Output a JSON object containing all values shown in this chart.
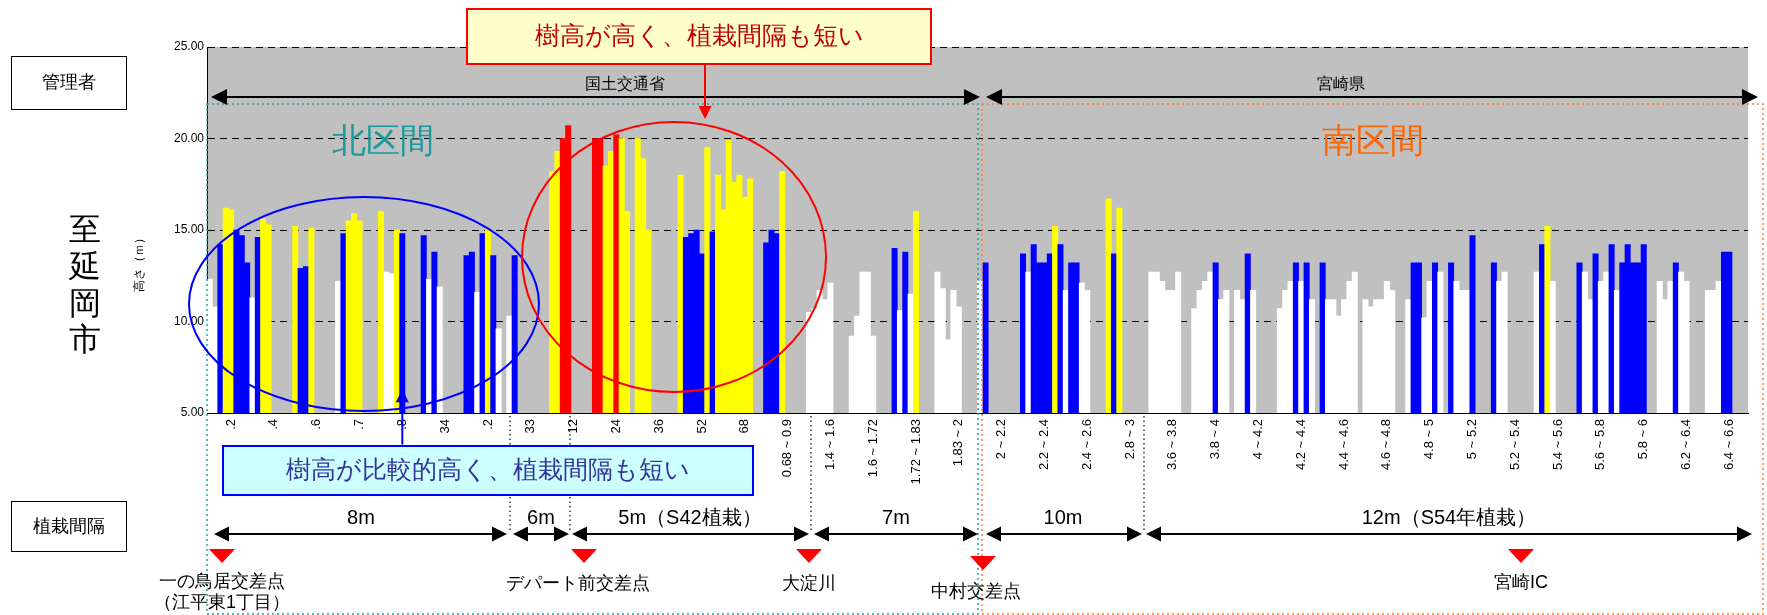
{
  "chart_data": {
    "type": "bar",
    "ylabel": "高さ（ｍ）",
    "categories": [
      null,
      null,
      null,
      null,
      ".2",
      null,
      null,
      null,
      null,
      null,
      null,
      null,
      ".4",
      null,
      null,
      null,
      null,
      null,
      null,
      null,
      ".6",
      null,
      null,
      null,
      null,
      null,
      null,
      null,
      ".7",
      null,
      null,
      null,
      null,
      null,
      null,
      null,
      ".8",
      null,
      null,
      null,
      null,
      null,
      null,
      null,
      "34",
      null,
      null,
      null,
      null,
      null,
      null,
      null,
      ".2",
      null,
      null,
      null,
      null,
      null,
      null,
      null,
      "33",
      null,
      null,
      null,
      null,
      null,
      null,
      null,
      "12",
      null,
      null,
      null,
      null,
      null,
      null,
      null,
      "24",
      null,
      null,
      null,
      null,
      null,
      null,
      null,
      "36",
      null,
      null,
      null,
      null,
      null,
      null,
      null,
      "52",
      null,
      null,
      null,
      null,
      null,
      null,
      null,
      "68",
      null,
      null,
      null,
      null,
      null,
      null,
      null,
      "0.68 ~ 0.9",
      null,
      null,
      null,
      null,
      null,
      null,
      null,
      "1.4 ~ 1.6",
      null,
      null,
      null,
      null,
      null,
      null,
      null,
      "1.6 ~ 1.72",
      null,
      null,
      null,
      null,
      null,
      null,
      null,
      "1.72 ~ 1.83",
      null,
      null,
      null,
      null,
      null,
      null,
      null,
      "1.83 ~ 2",
      null,
      null,
      null,
      null,
      null,
      null,
      null,
      "2 ~ 2.2",
      null,
      null,
      null,
      null,
      null,
      null,
      null,
      "2.2 ~ 2.4",
      null,
      null,
      null,
      null,
      null,
      null,
      null,
      "2.4 ~ 2.6",
      null,
      null,
      null,
      null,
      null,
      null,
      null,
      "2.8 ~ 3",
      null,
      null,
      null,
      null,
      null,
      null,
      null,
      "3.6 ~ 3.8",
      null,
      null,
      null,
      null,
      null,
      null,
      null,
      "3.8 ~ 4",
      null,
      null,
      null,
      null,
      null,
      null,
      null,
      "4 ~ 4.2",
      null,
      null,
      null,
      null,
      null,
      null,
      null,
      "4.2 ~ 4.4",
      null,
      null,
      null,
      null,
      null,
      null,
      null,
      "4.4 ~ 4.6",
      null,
      null,
      null,
      null,
      null,
      null,
      null,
      "4.6 ~ 4.8",
      null,
      null,
      null,
      null,
      null,
      null,
      null,
      "4.8 ~ 5",
      null,
      null,
      null,
      null,
      null,
      null,
      null,
      "5 ~ 5.2",
      null,
      null,
      null,
      null,
      null,
      null,
      null,
      "5.2 ~ 5.4",
      null,
      null,
      null,
      null,
      null,
      null,
      null,
      "5.4 ~ 5.6",
      null,
      null,
      null,
      null,
      null,
      null,
      null,
      "5.6 ~ 5.8",
      null,
      null,
      null,
      null,
      null,
      null,
      null,
      "5.8 ~ 6",
      null,
      null,
      null,
      null,
      null,
      null,
      null,
      "6.2 ~ 6.4",
      null,
      null,
      null,
      null,
      null,
      null,
      null,
      "6.4 ~ 6.6",
      null,
      null,
      null
    ],
    "values": [
      12.3,
      10.8,
      14.2,
      16.2,
      16.1,
      15.0,
      14.7,
      13.2,
      11.3,
      14.6,
      15.6,
      15.3,
      null,
      null,
      null,
      null,
      15.2,
      12.9,
      13.0,
      15.1,
      null,
      null,
      null,
      null,
      12.2,
      14.8,
      15.5,
      15.9,
      15.5,
      null,
      null,
      null,
      16.0,
      12.7,
      12.6,
      15.0,
      14.8,
      null,
      null,
      null,
      14.7,
      12.3,
      13.8,
      11.9,
      null,
      null,
      null,
      null,
      13.6,
      13.8,
      11.6,
      14.8,
      15.0,
      13.6,
      9.6,
      null,
      10.3,
      13.6,
      null,
      null,
      null,
      null,
      null,
      null,
      18.2,
      19.3,
      20.0,
      20.7,
      null,
      null,
      null,
      null,
      20.0,
      20.0,
      18.5,
      19.3,
      20.2,
      20.0,
      16.0,
      null,
      20.0,
      18.9,
      15.0,
      null,
      null,
      null,
      null,
      null,
      18.0,
      14.6,
      14.8,
      15.0,
      13.7,
      19.5,
      14.9,
      18.0,
      16.1,
      19.9,
      17.6,
      18.0,
      16.8,
      17.8,
      null,
      null,
      14.3,
      15.0,
      14.8,
      18.2,
      null,
      null,
      null,
      null,
      10.5,
      10.7,
      11.7,
      11.2,
      12.1,
      null,
      null,
      null,
      9.2,
      10.3,
      12.7,
      12.7,
      9.2,
      null,
      null,
      null,
      14.0,
      10.6,
      13.8,
      11.5,
      16.0,
      null,
      null,
      null,
      12.7,
      11.8,
      9.0,
      11.7,
      10.8,
      null,
      null,
      null,
      12.2,
      13.2,
      null,
      null,
      null,
      null,
      null,
      null,
      13.7,
      12.7,
      14.2,
      13.2,
      13.2,
      13.7,
      15.2,
      14.2,
      11.7,
      13.2,
      13.2,
      12.1,
      11.7,
      null,
      null,
      null,
      16.7,
      13.7,
      16.2,
      null,
      null,
      null,
      null,
      null,
      12.7,
      12.7,
      12.2,
      11.7,
      11.7,
      12.7,
      null,
      null,
      10.7,
      11.7,
      12.2,
      12.7,
      13.2,
      11.2,
      11.7,
      null,
      11.7,
      11.2,
      13.7,
      11.7,
      null,
      null,
      null,
      null,
      10.7,
      11.7,
      12.2,
      13.2,
      12.2,
      13.2,
      11.2,
      null,
      13.2,
      11.2,
      11.2,
      10.3,
      11.2,
      12.2,
      12.7,
      null,
      11.2,
      10.8,
      11.2,
      11.2,
      12.2,
      11.7,
      null,
      null,
      11.2,
      13.2,
      13.2,
      10.2,
      12.2,
      13.2,
      12.7,
      null,
      13.2,
      12.2,
      11.7,
      11.7,
      14.7,
      null,
      null,
      null,
      13.2,
      12.2,
      12.7,
      null,
      null,
      null,
      null,
      null,
      12.7,
      14.2,
      15.2,
      12.2,
      null,
      null,
      null,
      null,
      13.2,
      12.7,
      11.2,
      13.7,
      12.2,
      12.7,
      14.2,
      11.7,
      13.2,
      14.2,
      13.2,
      13.2,
      14.2,
      null,
      null,
      12.2,
      11.2,
      12.2,
      13.2,
      12.7,
      12.2,
      null,
      null,
      null,
      11.7,
      11.7,
      12.2,
      13.8,
      13.8,
      null,
      null,
      null
    ],
    "colors": [
      "#ffffff",
      "#ffffff",
      "#0000ff",
      "#ffff00",
      "#ffff00",
      "#0000ff",
      "#0000ff",
      "#0000ff",
      "#ffffff",
      "#0000ff",
      "#ffff00",
      "#ffff00",
      null,
      null,
      null,
      null,
      "#ffff00",
      "#0000ff",
      "#0000ff",
      "#ffff00",
      null,
      null,
      null,
      null,
      "#ffffff",
      "#0000ff",
      "#ffff00",
      "#ffff00",
      "#ffff00",
      null,
      null,
      null,
      "#ffff00",
      "#ffffff",
      "#ffffff",
      "#ffff00",
      "#0000ff",
      null,
      null,
      null,
      "#0000ff",
      "#ffffff",
      "#0000ff",
      "#ffffff",
      null,
      null,
      null,
      null,
      "#0000ff",
      "#0000ff",
      "#ffffff",
      "#0000ff",
      "#ffff00",
      "#0000ff",
      "#ffffff",
      null,
      "#ffffff",
      "#0000ff",
      null,
      null,
      null,
      null,
      null,
      null,
      "#ffff00",
      "#ffff00",
      "#ff0000",
      "#ff0000",
      null,
      null,
      null,
      null,
      "#ff0000",
      "#ff0000",
      "#ffff00",
      "#ffff00",
      "#ff0000",
      "#ffff00",
      "#ffff00",
      null,
      "#ffff00",
      "#ffff00",
      "#ffff00",
      null,
      null,
      null,
      null,
      null,
      "#ffff00",
      "#0000ff",
      "#0000ff",
      "#0000ff",
      "#0000ff",
      "#ffff00",
      "#0000ff",
      "#ffff00",
      "#ffff00",
      "#ffff00",
      "#ffff00",
      "#ffff00",
      "#ffff00",
      "#ffff00",
      null,
      null,
      "#0000ff",
      "#0000ff",
      "#0000ff",
      "#ffff00",
      null,
      null,
      null,
      null,
      "#ffffff",
      "#ffffff",
      "#ffffff",
      "#ffffff",
      "#ffffff",
      null,
      null,
      null,
      "#ffffff",
      "#ffffff",
      "#ffffff",
      "#ffffff",
      "#ffffff",
      null,
      null,
      null,
      "#0000ff",
      "#ffffff",
      "#0000ff",
      "#ffffff",
      "#ffff00",
      null,
      null,
      null,
      "#ffffff",
      "#ffffff",
      "#ffffff",
      "#ffffff",
      "#ffffff",
      null,
      null,
      null,
      "#ffffff",
      "#0000ff",
      null,
      null,
      null,
      null,
      null,
      null,
      "#0000ff",
      "#ffffff",
      "#0000ff",
      "#0000ff",
      "#0000ff",
      "#0000ff",
      "#ffff00",
      "#0000ff",
      "#ffffff",
      "#0000ff",
      "#0000ff",
      "#ffffff",
      "#ffffff",
      null,
      null,
      null,
      "#ffff00",
      "#0000ff",
      "#ffff00",
      null,
      null,
      null,
      null,
      null,
      "#ffffff",
      "#ffffff",
      "#ffffff",
      "#ffffff",
      "#ffffff",
      "#ffffff",
      null,
      null,
      "#ffffff",
      "#ffffff",
      "#ffffff",
      "#ffffff",
      "#0000ff",
      "#ffffff",
      "#ffffff",
      null,
      "#ffffff",
      "#ffffff",
      "#0000ff",
      "#ffffff",
      null,
      null,
      null,
      null,
      "#ffffff",
      "#ffffff",
      "#ffffff",
      "#0000ff",
      "#ffffff",
      "#0000ff",
      "#ffffff",
      null,
      "#0000ff",
      "#ffffff",
      "#ffffff",
      "#ffffff",
      "#ffffff",
      "#ffffff",
      "#ffffff",
      null,
      "#ffffff",
      "#ffffff",
      "#ffffff",
      "#ffffff",
      "#ffffff",
      "#ffffff",
      null,
      null,
      "#ffffff",
      "#0000ff",
      "#0000ff",
      "#ffffff",
      "#ffffff",
      "#0000ff",
      "#ffffff",
      null,
      "#0000ff",
      "#ffffff",
      "#ffffff",
      "#ffffff",
      "#0000ff",
      null,
      null,
      null,
      "#0000ff",
      "#ffffff",
      "#ffffff",
      null,
      null,
      null,
      null,
      null,
      "#ffffff",
      "#0000ff",
      "#ffff00",
      "#ffffff",
      null,
      null,
      null,
      null,
      "#0000ff",
      "#ffffff",
      "#ffffff",
      "#0000ff",
      "#ffffff",
      "#ffffff",
      "#0000ff",
      "#ffffff",
      "#0000ff",
      "#0000ff",
      "#0000ff",
      "#0000ff",
      "#0000ff",
      null,
      null,
      "#ffffff",
      "#ffffff",
      "#ffffff",
      "#0000ff",
      "#ffffff",
      "#ffffff",
      null,
      null,
      null,
      "#ffffff",
      "#ffffff",
      "#ffffff",
      "#0000ff",
      "#0000ff",
      null,
      null,
      null
    ],
    "ylim": [
      5,
      25
    ],
    "yticks": [
      {
        "value": 5,
        "label": "5.00"
      },
      {
        "value": 10,
        "label": "10.00"
      },
      {
        "value": 15,
        "label": "15.00"
      },
      {
        "value": 20,
        "label": "20.00"
      },
      {
        "value": 25,
        "label": "25.00"
      }
    ],
    "grid": "y",
    "annotations": [
      "管理者",
      "国土交通省",
      "宮崎県",
      "至延岡市",
      "北区間",
      "南区間",
      "樹高が高く、植栽間隔も短い",
      {
        "text": "樹高が比較的高く、植栽間隔も短い",
        "x": ".8",
        "y": 6.3
      },
      "植栽間隔",
      "8m",
      "6m",
      "5m（S42植栽）",
      "7m",
      "10m",
      "12m（S54年植栽）",
      "一の鳥居交差点",
      "（江平東1丁目）",
      "デパート前交差点",
      "大淀川",
      "中村交差点",
      "宮崎IC"
    ]
  }
}
